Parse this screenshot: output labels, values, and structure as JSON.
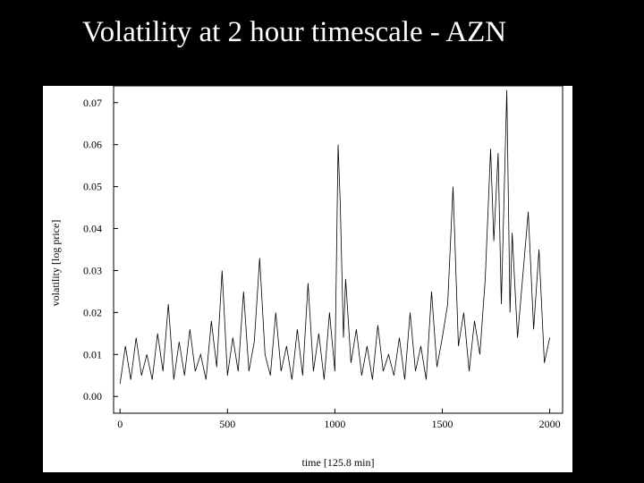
{
  "title": "Volatility at 2 hour timescale - AZN",
  "chart_data": {
    "type": "line",
    "title": "Volatility at 2 hour timescale - AZN",
    "xlabel": "time [125.8 min]",
    "ylabel": "volatility [log price]",
    "xlim": [
      -30,
      2060
    ],
    "ylim": [
      -0.004,
      0.074
    ],
    "xticks": [
      0,
      500,
      1000,
      1500,
      2000
    ],
    "yticks": [
      0.0,
      0.01,
      0.02,
      0.03,
      0.04,
      0.05,
      0.06,
      0.07
    ],
    "xtick_labels": [
      "0",
      "500",
      "1000",
      "1500",
      "2000"
    ],
    "ytick_labels": [
      "0.00",
      "0.01",
      "0.02",
      "0.03",
      "0.04",
      "0.05",
      "0.06",
      "0.07"
    ],
    "grid": false,
    "color": "#000000",
    "series": [
      {
        "x": [
          0,
          25,
          50,
          75,
          100,
          125,
          150,
          175,
          200,
          225,
          250,
          275,
          300,
          325,
          350,
          375,
          400,
          425,
          450,
          475,
          500,
          525,
          550,
          575,
          600,
          625,
          650,
          675,
          700,
          725,
          750,
          775,
          800,
          825,
          850,
          875,
          900,
          925,
          950,
          975,
          1000,
          1015,
          1025,
          1040,
          1050,
          1075,
          1100,
          1125,
          1150,
          1175,
          1200,
          1225,
          1250,
          1275,
          1300,
          1325,
          1350,
          1375,
          1400,
          1425,
          1450,
          1475,
          1500,
          1525,
          1550,
          1575,
          1600,
          1625,
          1650,
          1675,
          1700,
          1725,
          1740,
          1760,
          1775,
          1800,
          1815,
          1825,
          1850,
          1875,
          1900,
          1925,
          1950,
          1975,
          2000
        ],
        "y": [
          0.003,
          0.012,
          0.004,
          0.014,
          0.005,
          0.01,
          0.004,
          0.015,
          0.006,
          0.022,
          0.004,
          0.013,
          0.005,
          0.016,
          0.006,
          0.01,
          0.004,
          0.018,
          0.007,
          0.03,
          0.005,
          0.014,
          0.006,
          0.025,
          0.006,
          0.013,
          0.033,
          0.01,
          0.005,
          0.02,
          0.006,
          0.012,
          0.004,
          0.016,
          0.005,
          0.027,
          0.006,
          0.015,
          0.004,
          0.02,
          0.006,
          0.06,
          0.046,
          0.014,
          0.028,
          0.008,
          0.016,
          0.005,
          0.012,
          0.004,
          0.017,
          0.006,
          0.01,
          0.005,
          0.014,
          0.004,
          0.02,
          0.006,
          0.012,
          0.004,
          0.025,
          0.007,
          0.014,
          0.022,
          0.05,
          0.012,
          0.02,
          0.006,
          0.018,
          0.01,
          0.028,
          0.059,
          0.037,
          0.058,
          0.022,
          0.073,
          0.02,
          0.039,
          0.014,
          0.029,
          0.044,
          0.016,
          0.035,
          0.008,
          0.014
        ]
      }
    ]
  }
}
